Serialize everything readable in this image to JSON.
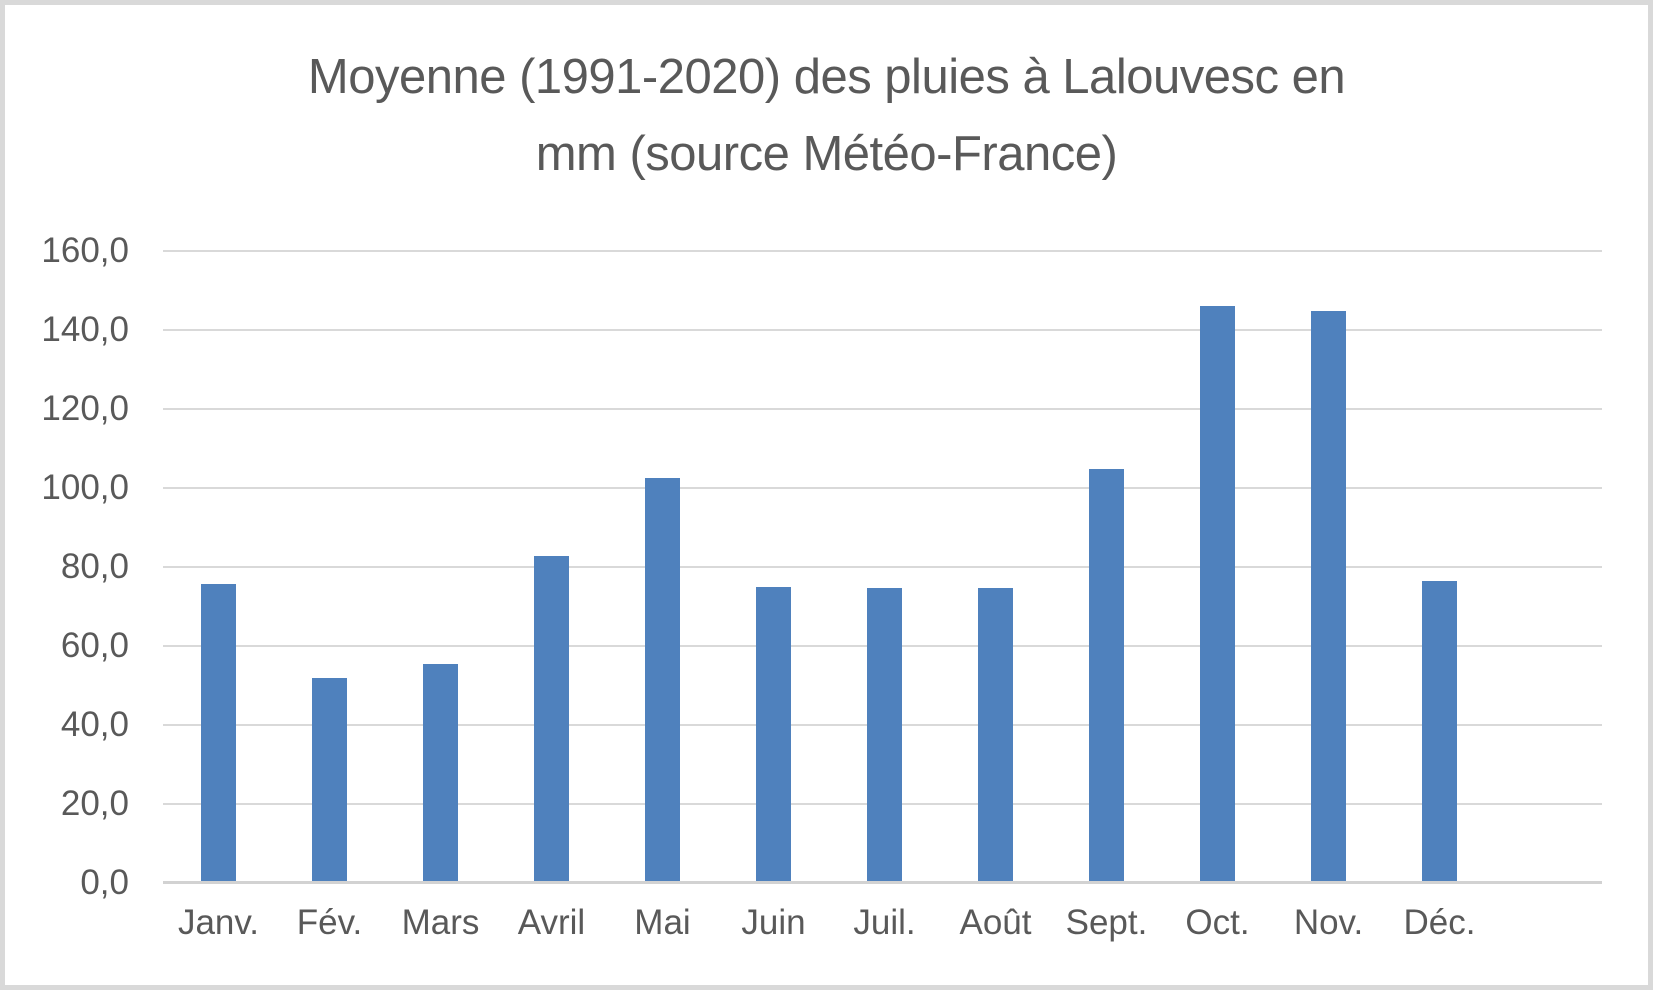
{
  "chart_data": {
    "type": "bar",
    "title": "Moyenne (1991-2020) des pluies à Lalouvesc en mm (source Météo-France)",
    "title_lines": [
      "Moyenne (1991-2020) des pluies à Lalouvesc en",
      "mm (source Météo-France)"
    ],
    "categories": [
      "Janv.",
      "Fév.",
      "Mars",
      "Avril",
      "Mai",
      "Juin",
      "Juil.",
      "Août",
      "Sept.",
      "Oct.",
      "Nov.",
      "Déc."
    ],
    "values": [
      75.7,
      52.0,
      55.5,
      82.8,
      102.5,
      75.0,
      74.7,
      74.7,
      104.8,
      146.0,
      144.8,
      76.5
    ],
    "xlabel": "",
    "ylabel": "",
    "ylim": [
      0,
      160
    ],
    "ytick_step": 20,
    "ytick_labels": [
      "0,0",
      "20,0",
      "40,0",
      "60,0",
      "80,0",
      "100,0",
      "120,0",
      "140,0",
      "160,0"
    ],
    "decimal_separator": ",",
    "grid": "horizontal",
    "legend": "none",
    "colors": {
      "bar": "#4f81bd",
      "gridline": "#d9d9d9",
      "axis_line": "#d2d2d2",
      "text": "#595959",
      "frame_border": "#d9d9d9",
      "background": "#ffffff"
    }
  }
}
